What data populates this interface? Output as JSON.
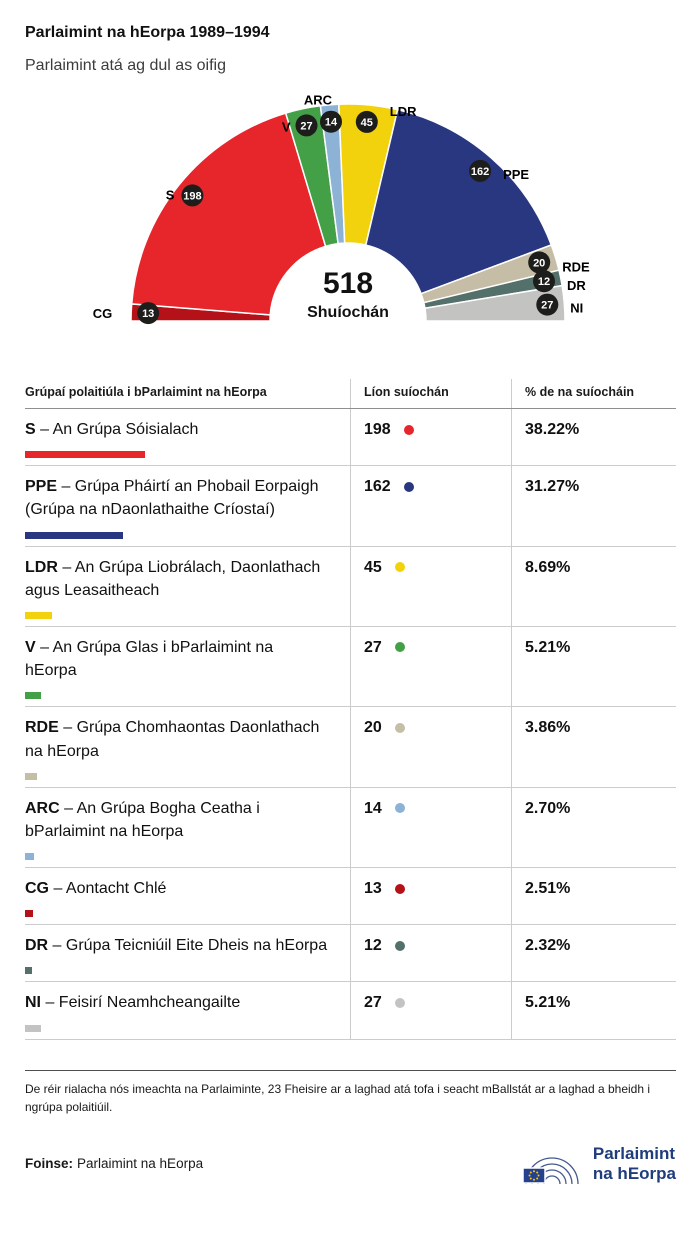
{
  "header": {
    "title": "Parlaimint na hEorpa 1989–1994",
    "subtitle": "Parlaimint atá ag dul as oifig"
  },
  "chart_data": {
    "type": "pie",
    "variant": "hemicycle-half-donut",
    "title": "Parlaimint na hEorpa 1989–1994",
    "total_seats": 518,
    "center_value": "518",
    "center_caption": "Shuíochán",
    "badge_color": "#1d1d1b",
    "order_left_to_right": [
      "CG",
      "S",
      "V",
      "ARC",
      "LDR",
      "PPE",
      "RDE",
      "DR",
      "NI"
    ],
    "series": [
      {
        "id": "CG",
        "label": "CG",
        "seats": 13,
        "color": "#b41218"
      },
      {
        "id": "S",
        "label": "S",
        "seats": 198,
        "color": "#e6262a"
      },
      {
        "id": "V",
        "label": "V",
        "seats": 27,
        "color": "#43a047"
      },
      {
        "id": "ARC",
        "label": "ARC",
        "seats": 14,
        "color": "#8cb2d6"
      },
      {
        "id": "LDR",
        "label": "LDR",
        "seats": 45,
        "color": "#f2d20c"
      },
      {
        "id": "PPE",
        "label": "PPE",
        "seats": 162,
        "color": "#293780"
      },
      {
        "id": "RDE",
        "label": "RDE",
        "seats": 20,
        "color": "#c6bda6"
      },
      {
        "id": "DR",
        "label": "DR",
        "seats": 12,
        "color": "#53706a"
      },
      {
        "id": "NI",
        "label": "NI",
        "seats": 27,
        "color": "#c3c3c2"
      }
    ]
  },
  "table": {
    "headers": [
      "Grúpaí polaitiúla i bParlaimint na hEorpa",
      "Líon suíochán",
      "% de na suíocháin"
    ],
    "rows": [
      {
        "abbr": "S",
        "name": "– An Grúpa Sóisialach",
        "seats": "198",
        "pct": "38.22%",
        "pct_num": 38.22,
        "color": "#e6262a"
      },
      {
        "abbr": "PPE",
        "name": "– Grúpa Pháirtí an Phobail Eorpaigh (Grúpa na nDaonlathaithe Críostaí)",
        "seats": "162",
        "pct": "31.27%",
        "pct_num": 31.27,
        "color": "#293780"
      },
      {
        "abbr": "LDR",
        "name": "– An Grúpa Liobrálach, Daonlathach agus Leasaitheach",
        "seats": "45",
        "pct": "8.69%",
        "pct_num": 8.69,
        "color": "#f2d20c"
      },
      {
        "abbr": "V",
        "name": "– An Grúpa Glas i bParlaimint na hEorpa",
        "seats": "27",
        "pct": "5.21%",
        "pct_num": 5.21,
        "color": "#43a047"
      },
      {
        "abbr": "RDE",
        "name": "– Grúpa Chomhaontas Daonlathach na hEorpa",
        "seats": "20",
        "pct": "3.86%",
        "pct_num": 3.86,
        "color": "#c6bda6"
      },
      {
        "abbr": "ARC",
        "name": "– An Grúpa Bogha Ceatha i bParlaimint na hEorpa",
        "seats": "14",
        "pct": "2.70%",
        "pct_num": 2.7,
        "color": "#8cb2d6"
      },
      {
        "abbr": "CG",
        "name": "– Aontacht Chlé",
        "seats": "13",
        "pct": "2.51%",
        "pct_num": 2.51,
        "color": "#b41218"
      },
      {
        "abbr": "DR",
        "name": "– Grúpa Teicniúil Eite Dheis na hEorpa",
        "seats": "12",
        "pct": "2.32%",
        "pct_num": 2.32,
        "color": "#53706a"
      },
      {
        "abbr": "NI",
        "name": "– Feisirí Neamhcheangailte",
        "seats": "27",
        "pct": "5.21%",
        "pct_num": 5.21,
        "color": "#c3c3c2"
      }
    ]
  },
  "footer": {
    "note": "De réir rialacha nós imeachta na Parlaiminte, 23 Fheisire ar a laghad atá tofa i seacht mBallstát ar a laghad a bheidh i ngrúpa polaitiúil.",
    "source_label": "Foinse:",
    "source_value": "Parlaimint na hEorpa",
    "logo": {
      "line1": "Parlaimint",
      "line2": "na hEorpa",
      "text_color": "#1f3d7c",
      "flag_blue": "#24408e",
      "star_yellow": "#ffcc00"
    }
  }
}
